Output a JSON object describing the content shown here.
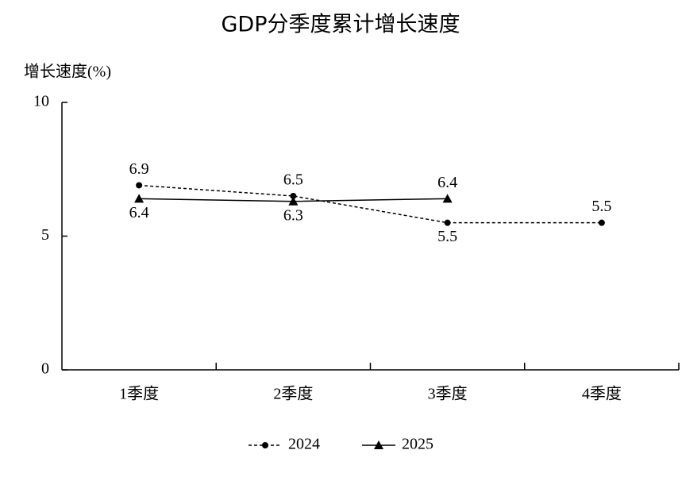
{
  "chart_data": {
    "type": "line",
    "title": "GDP分季度累计增长速度",
    "y_label": "增长速度(%)",
    "categories": [
      "1季度",
      "2季度",
      "3季度",
      "4季度"
    ],
    "series": [
      {
        "name": "2024",
        "color": "#000000",
        "dash": true,
        "marker": "circle",
        "values": [
          6.9,
          6.5,
          5.5,
          5.5
        ]
      },
      {
        "name": "2025",
        "color": "#000000",
        "dash": false,
        "marker": "triangle",
        "values": [
          6.4,
          6.3,
          6.4,
          null
        ]
      }
    ],
    "ylim": [
      0,
      10
    ],
    "yticks": [
      0,
      5,
      10
    ],
    "grid": false,
    "legend": "bottom"
  }
}
